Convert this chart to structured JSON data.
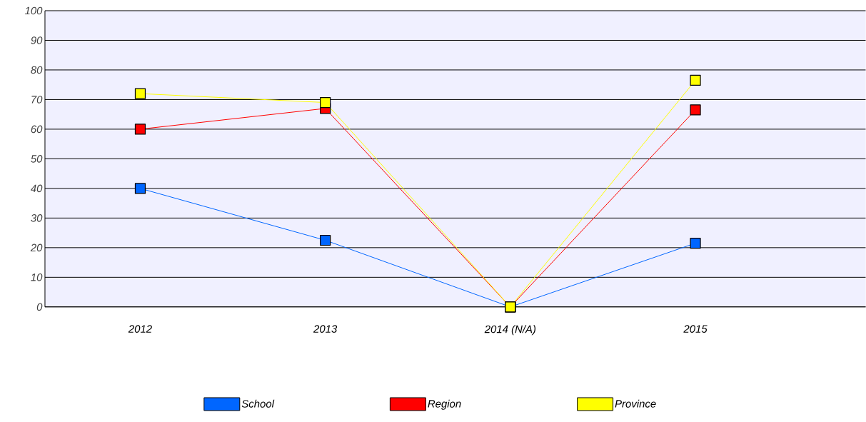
{
  "chart_data": {
    "type": "line",
    "categories": [
      "2012",
      "2013",
      "2014 (N/A)",
      "2015"
    ],
    "series": [
      {
        "name": "School",
        "color": "#0066ff",
        "values": [
          40,
          22.5,
          0,
          21.5
        ]
      },
      {
        "name": "Region",
        "color": "#ff0000",
        "values": [
          60,
          67,
          0,
          66.5
        ]
      },
      {
        "name": "Province",
        "color": "#ffff00",
        "values": [
          72,
          69,
          0,
          76.5
        ]
      }
    ],
    "ylim": [
      0,
      100
    ],
    "yticks": [
      0,
      10,
      20,
      30,
      40,
      50,
      60,
      70,
      80,
      90,
      100
    ],
    "grid": "y",
    "legend": "bottom",
    "marker": "square",
    "line_style": "solid"
  }
}
